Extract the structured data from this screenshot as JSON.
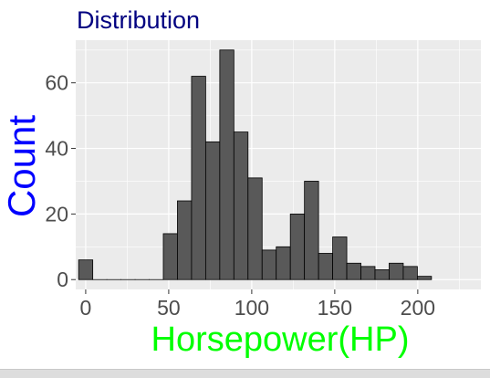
{
  "chart_data": {
    "type": "bar",
    "title": "Distribution",
    "xlabel": "Horsepower(HP)",
    "ylabel": "Count",
    "bin_width": 8.5,
    "x_ticks": [
      0,
      50,
      100,
      150,
      200
    ],
    "y_ticks": [
      0,
      20,
      40,
      60
    ],
    "xlim": [
      -6,
      238
    ],
    "ylim": [
      -3,
      73
    ],
    "grid": true,
    "bins": [
      {
        "x": 0,
        "count": 6
      },
      {
        "x": 8.5,
        "count": 0
      },
      {
        "x": 17,
        "count": 0
      },
      {
        "x": 25.5,
        "count": 0
      },
      {
        "x": 34,
        "count": 0
      },
      {
        "x": 42.5,
        "count": 0
      },
      {
        "x": 51,
        "count": 14
      },
      {
        "x": 59.5,
        "count": 24
      },
      {
        "x": 68,
        "count": 62
      },
      {
        "x": 76.5,
        "count": 42
      },
      {
        "x": 85,
        "count": 70
      },
      {
        "x": 93.5,
        "count": 45
      },
      {
        "x": 102,
        "count": 31
      },
      {
        "x": 110.5,
        "count": 9
      },
      {
        "x": 119,
        "count": 10
      },
      {
        "x": 127.5,
        "count": 20
      },
      {
        "x": 136,
        "count": 30
      },
      {
        "x": 144.5,
        "count": 8
      },
      {
        "x": 153,
        "count": 13
      },
      {
        "x": 161.5,
        "count": 5
      },
      {
        "x": 170,
        "count": 4
      },
      {
        "x": 178.5,
        "count": 3
      },
      {
        "x": 187,
        "count": 5
      },
      {
        "x": 195.5,
        "count": 4
      },
      {
        "x": 204,
        "count": 1
      }
    ]
  },
  "colors": {
    "panel_bg": "#ebebeb",
    "grid": "#ffffff",
    "bar_fill": "#595959",
    "bar_stroke": "#000000",
    "title": "#000080",
    "ylabel": "#0000ff",
    "xlabel": "#00ff00",
    "tick_text": "#4d4d4d"
  }
}
